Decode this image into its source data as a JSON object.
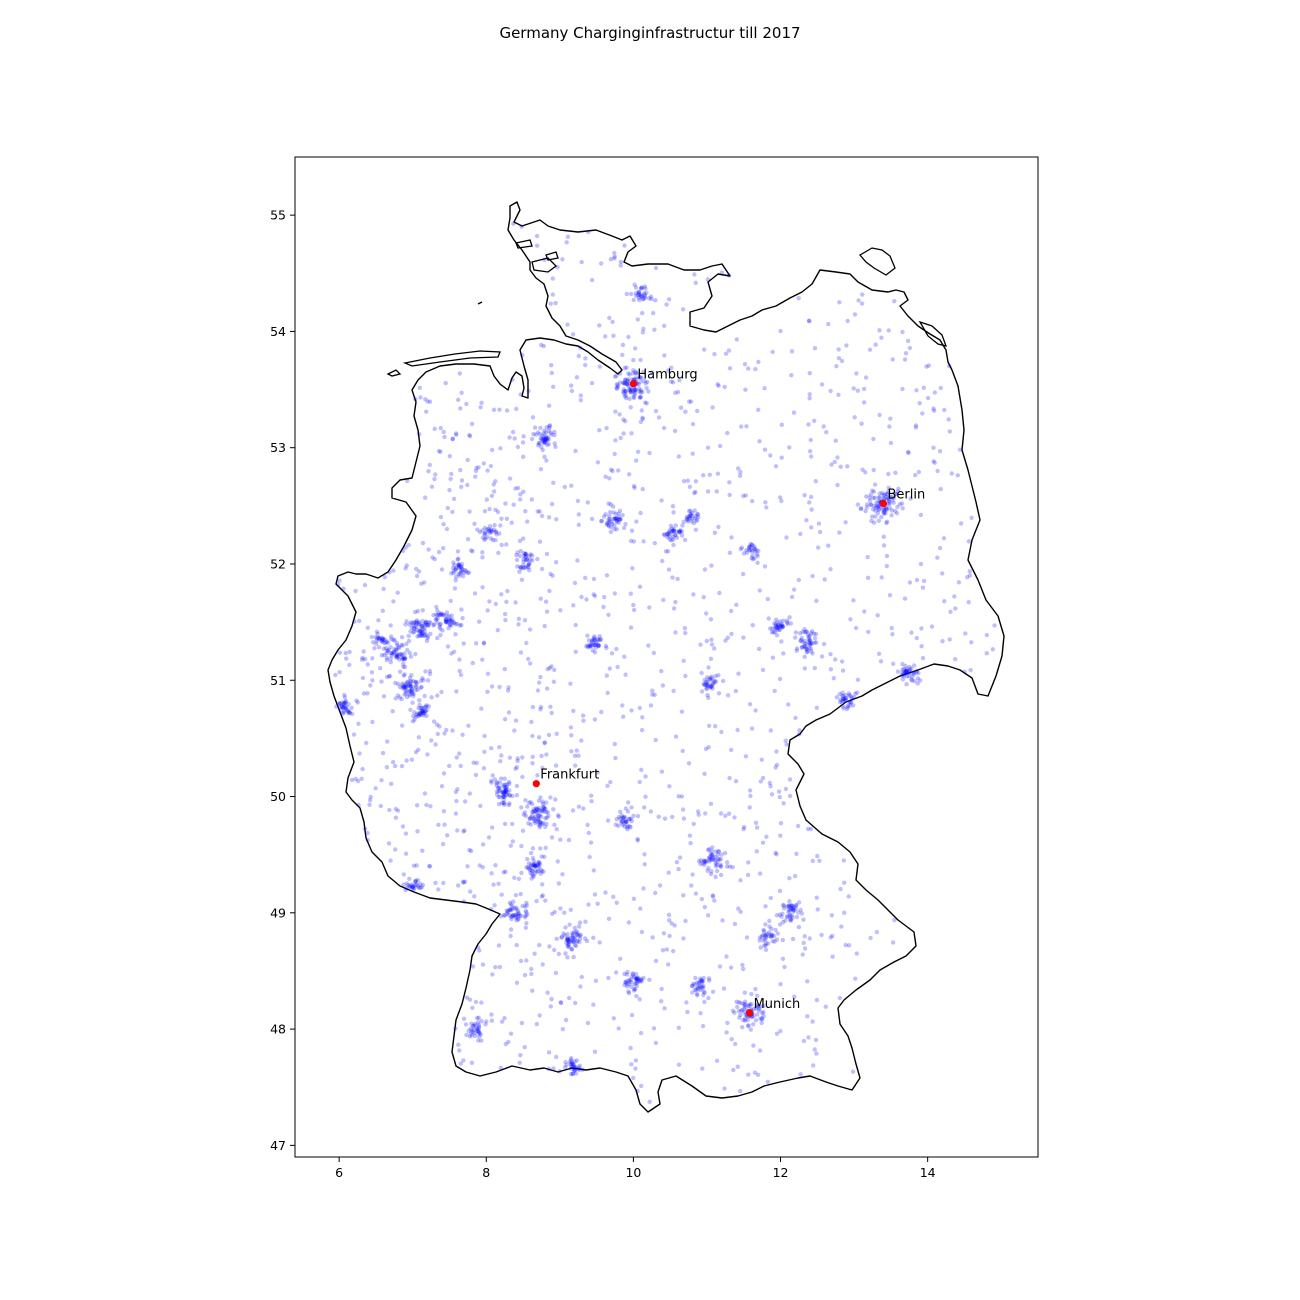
{
  "chart_data": {
    "type": "scatter",
    "title": "Germany Charginginfrastructur till 2017",
    "xlabel": "",
    "ylabel": "",
    "xlim": [
      5.4,
      15.5
    ],
    "ylim": [
      46.9,
      55.5
    ],
    "xticks": [
      6,
      8,
      10,
      12,
      14
    ],
    "yticks": [
      47,
      48,
      49,
      50,
      51,
      52,
      53,
      54,
      55
    ],
    "xtick_labels": [
      "6",
      "8",
      "10",
      "12",
      "14"
    ],
    "ytick_labels": [
      "47",
      "48",
      "49",
      "50",
      "51",
      "52",
      "53",
      "54",
      "55"
    ],
    "grid": false,
    "colors": {
      "stations": "#0000ff",
      "cities": "#ff0000",
      "border": "#000000"
    },
    "cities": [
      {
        "name": "Hamburg",
        "lon": 10.0,
        "lat": 53.55
      },
      {
        "name": "Berlin",
        "lon": 13.4,
        "lat": 52.52
      },
      {
        "name": "Frankfurt",
        "lon": 8.68,
        "lat": 50.11
      },
      {
        "name": "Munich",
        "lon": 11.58,
        "lat": 48.14
      }
    ],
    "hotspots": [
      {
        "lon": 10.0,
        "lat": 53.55,
        "weight": 1.0
      },
      {
        "lon": 13.4,
        "lat": 52.52,
        "weight": 1.0
      },
      {
        "lon": 11.58,
        "lat": 48.14,
        "weight": 0.8
      },
      {
        "lon": 8.68,
        "lat": 49.85,
        "weight": 0.7
      },
      {
        "lon": 9.18,
        "lat": 48.78,
        "weight": 0.6
      },
      {
        "lon": 6.95,
        "lat": 50.94,
        "weight": 0.6
      },
      {
        "lon": 6.78,
        "lat": 51.23,
        "weight": 0.6
      },
      {
        "lon": 7.1,
        "lat": 51.45,
        "weight": 0.6
      },
      {
        "lon": 7.45,
        "lat": 51.51,
        "weight": 0.5
      },
      {
        "lon": 12.37,
        "lat": 51.34,
        "weight": 0.5
      },
      {
        "lon": 11.08,
        "lat": 49.45,
        "weight": 0.5
      },
      {
        "lon": 9.99,
        "lat": 48.4,
        "weight": 0.4
      },
      {
        "lon": 12.1,
        "lat": 49.01,
        "weight": 0.4
      },
      {
        "lon": 8.4,
        "lat": 49.0,
        "weight": 0.4
      },
      {
        "lon": 8.68,
        "lat": 49.4,
        "weight": 0.4
      },
      {
        "lon": 9.73,
        "lat": 52.37,
        "weight": 0.4
      },
      {
        "lon": 8.8,
        "lat": 53.08,
        "weight": 0.4
      },
      {
        "lon": 13.74,
        "lat": 51.05,
        "weight": 0.4
      },
      {
        "lon": 11.82,
        "lat": 48.78,
        "weight": 0.3
      },
      {
        "lon": 10.9,
        "lat": 48.37,
        "weight": 0.3
      },
      {
        "lon": 7.63,
        "lat": 51.96,
        "weight": 0.3
      },
      {
        "lon": 8.53,
        "lat": 52.02,
        "weight": 0.3
      },
      {
        "lon": 9.48,
        "lat": 51.31,
        "weight": 0.3
      },
      {
        "lon": 6.08,
        "lat": 50.77,
        "weight": 0.3
      },
      {
        "lon": 7.1,
        "lat": 50.73,
        "weight": 0.3
      },
      {
        "lon": 10.52,
        "lat": 52.26,
        "weight": 0.3
      },
      {
        "lon": 11.03,
        "lat": 50.98,
        "weight": 0.3
      },
      {
        "lon": 9.9,
        "lat": 49.79,
        "weight": 0.3
      },
      {
        "lon": 7.85,
        "lat": 47.99,
        "weight": 0.3
      },
      {
        "lon": 9.18,
        "lat": 47.66,
        "weight": 0.3
      },
      {
        "lon": 12.9,
        "lat": 50.83,
        "weight": 0.3
      },
      {
        "lon": 11.97,
        "lat": 51.48,
        "weight": 0.3
      },
      {
        "lon": 7.0,
        "lat": 49.24,
        "weight": 0.2
      },
      {
        "lon": 10.13,
        "lat": 54.32,
        "weight": 0.2
      },
      {
        "lon": 8.23,
        "lat": 50.08,
        "weight": 0.2
      },
      {
        "lon": 8.27,
        "lat": 50.0,
        "weight": 0.2
      },
      {
        "lon": 10.78,
        "lat": 52.42,
        "weight": 0.2
      },
      {
        "lon": 6.57,
        "lat": 51.34,
        "weight": 0.2
      },
      {
        "lon": 11.62,
        "lat": 52.13,
        "weight": 0.2
      },
      {
        "lon": 8.05,
        "lat": 52.27,
        "weight": 0.2
      }
    ]
  }
}
